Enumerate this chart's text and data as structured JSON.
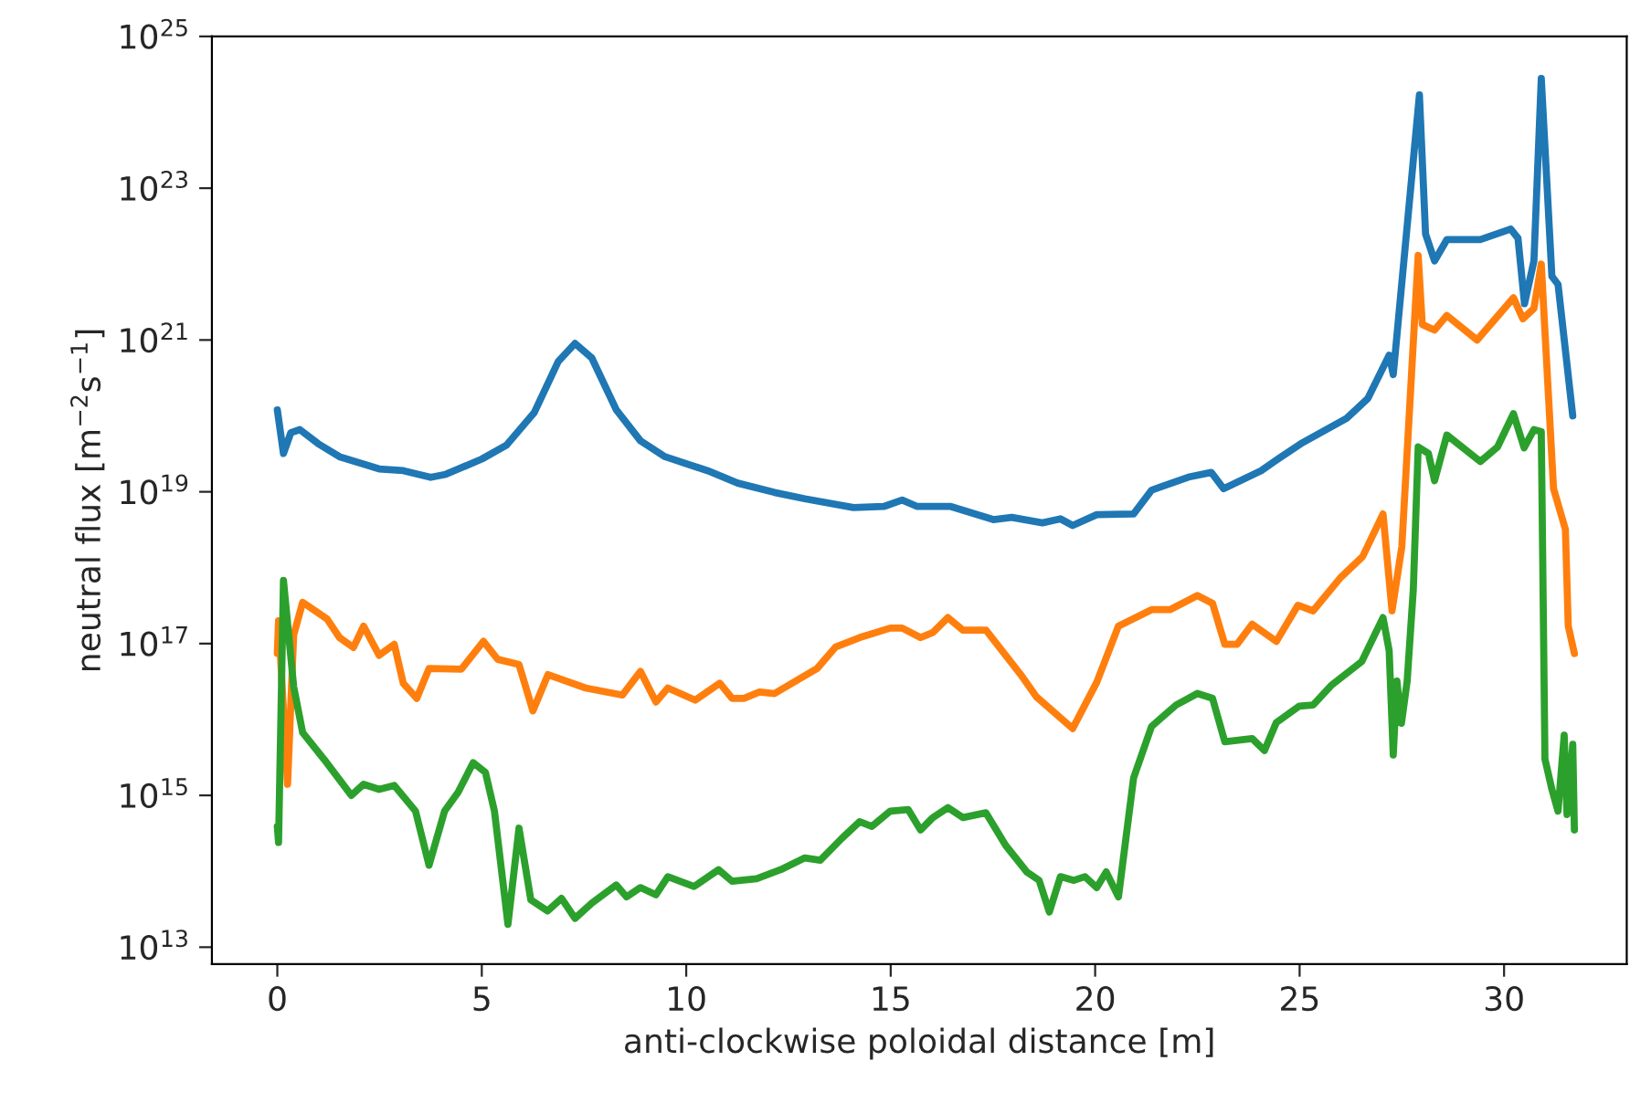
{
  "chart_data": {
    "type": "line",
    "xlabel": "anti-clockwise poloidal distance [m]",
    "ylabel": "neutral flux [m$^{−2}$s$^{−1}$]",
    "log": "y",
    "xlim": [
      -1.6,
      33.0
    ],
    "xticks": [
      0,
      5,
      10,
      15,
      20,
      25,
      30
    ],
    "ylim": [
      6000000000000.0,
      1e+25
    ],
    "yticks": [
      {
        "value": 10000000000000.0,
        "label": "10$^{13}$"
      },
      {
        "value": 1000000000000000.0,
        "label": "10$^{15}$"
      },
      {
        "value": 1e+17,
        "label": "10$^{17}$"
      },
      {
        "value": 1e+19,
        "label": "10$^{19}$"
      },
      {
        "value": 1e+21,
        "label": "10$^{21}$"
      },
      {
        "value": 1e+23,
        "label": "10$^{23}$"
      },
      {
        "value": 1e+25,
        "label": "10$^{25}$"
      }
    ],
    "grid": false,
    "legend": false,
    "line_style": "solid",
    "marker": "none",
    "series": [
      {
        "color": "#1f77b4",
        "x": [
          0,
          0.15,
          0.33,
          0.55,
          1.0,
          1.52,
          2.49,
          3.08,
          3.75,
          4.12,
          5.0,
          5.6,
          6.28,
          6.87,
          7.28,
          7.69,
          8.29,
          8.88,
          9.48,
          10.52,
          11.26,
          12.16,
          12.9,
          14.09,
          14.83,
          15.28,
          15.65,
          16.47,
          17.51,
          17.96,
          18.71,
          19.15,
          19.45,
          20.04,
          20.94,
          21.38,
          22.28,
          22.84,
          23.14,
          24.06,
          24.51,
          25.03,
          26.15,
          26.67,
          27.19,
          27.29,
          27.93,
          28.08,
          28.3,
          28.6,
          29.42,
          30.16,
          30.34,
          30.5,
          30.73,
          30.91,
          31.17,
          31.32,
          31.68
        ],
        "values": [
          1.2e+20,
          3.2e+19,
          6e+19,
          6.6e+19,
          4.3e+19,
          2.9e+19,
          2e+19,
          1.9e+19,
          1.55e+19,
          1.7e+19,
          2.7e+19,
          4.1e+19,
          1.1e+20,
          5.2e+20,
          9e+20,
          5.8e+20,
          1.2e+20,
          4.7e+19,
          2.9e+19,
          1.9e+19,
          1.3e+19,
          9.8e+18,
          8.1e+18,
          6.2e+18,
          6.4e+18,
          7.8e+18,
          6.4e+18,
          6.4e+18,
          4.3e+18,
          4.6e+18,
          3.9e+18,
          4.4e+18,
          3.6e+18,
          5e+18,
          5.1e+18,
          1.05e+19,
          1.56e+19,
          1.8e+19,
          1.1e+19,
          1.9e+19,
          2.8e+19,
          4.3e+19,
          9.3e+19,
          1.7e+20,
          6.3e+20,
          3.5e+20,
          1.7e+24,
          2.5e+22,
          1.1e+22,
          2.1e+22,
          2.1e+22,
          2.9e+22,
          2.2e+22,
          3e+21,
          1.1e+22,
          2.8e+24,
          6.9e+21,
          5.4e+21,
          1e+20
        ]
      },
      {
        "color": "#ff7f0e",
        "x": [
          0,
          0.03,
          0.25,
          0.4,
          0.62,
          1.22,
          1.52,
          1.86,
          2.11,
          2.49,
          2.86,
          3.08,
          3.41,
          3.71,
          4.5,
          5.04,
          5.39,
          5.91,
          6.25,
          6.62,
          7.54,
          8.44,
          8.88,
          9.26,
          9.55,
          10.22,
          10.82,
          11.12,
          11.41,
          11.79,
          12.16,
          13.2,
          13.65,
          14.24,
          14.99,
          15.28,
          15.73,
          16.03,
          16.4,
          16.77,
          17.33,
          18.18,
          18.56,
          19.45,
          20.04,
          20.57,
          21.38,
          21.83,
          22.5,
          22.87,
          23.17,
          23.47,
          23.84,
          24.43,
          24.96,
          25.33,
          26.0,
          26.54,
          27.04,
          27.26,
          27.5,
          27.9,
          28.0,
          28.3,
          28.6,
          29.34,
          30.23,
          30.46,
          30.73,
          30.91,
          31.21,
          31.5,
          31.57,
          31.72
        ],
        "values": [
          7.4e+16,
          2e+17,
          1400000000000000.0,
          1.3e+17,
          3.5e+17,
          2.1e+17,
          1.2e+17,
          8.9e+16,
          1.7e+17,
          7e+16,
          9.8e+16,
          3e+16,
          1.9e+16,
          4.7e+16,
          4.6e+16,
          1.07e+17,
          6.2e+16,
          5.3e+16,
          1.3e+16,
          3.9e+16,
          2.6e+16,
          2.1e+16,
          4.3e+16,
          1.7e+16,
          2.6e+16,
          1.8e+16,
          3e+16,
          1.9e+16,
          1.9e+16,
          2.3e+16,
          2.2e+16,
          4.7e+16,
          9e+16,
          1.2e+17,
          1.6e+17,
          1.6e+17,
          1.2e+17,
          1.4e+17,
          2.2e+17,
          1.5e+17,
          1.5e+17,
          3.9e+16,
          2e+16,
          7600000000000000.0,
          3.1e+16,
          1.7e+17,
          2.8e+17,
          2.8e+17,
          4.3e+17,
          3.4e+17,
          9.8e+16,
          9.8e+16,
          1.8e+17,
          1.07e+17,
          3.2e+17,
          2.7e+17,
          7.4e+17,
          1.4e+18,
          5.1e+18,
          2.7e+17,
          1.9e+18,
          1.3e+22,
          1.6e+21,
          1.35e+21,
          2.1e+21,
          1e+21,
          3.6e+21,
          1.9e+21,
          2.6e+21,
          1e+22,
          1.1e+19,
          3.2e+18,
          1.7e+17,
          7.4e+16
        ]
      },
      {
        "color": "#2ca02c",
        "x": [
          0,
          0.03,
          0.15,
          0.4,
          0.62,
          1.14,
          1.81,
          2.11,
          2.49,
          2.86,
          3.38,
          3.71,
          4.09,
          4.42,
          4.79,
          5.09,
          5.31,
          5.64,
          5.91,
          6.2,
          6.61,
          6.95,
          7.28,
          7.69,
          8.29,
          8.54,
          8.88,
          9.26,
          9.55,
          10.19,
          10.79,
          11.12,
          11.72,
          12.31,
          12.9,
          13.28,
          13.8,
          14.24,
          14.54,
          14.99,
          15.43,
          15.73,
          16.03,
          16.4,
          16.77,
          17.33,
          17.81,
          18.33,
          18.63,
          18.88,
          19.15,
          19.48,
          19.75,
          20.04,
          20.27,
          20.57,
          20.94,
          21.38,
          21.98,
          22.5,
          22.87,
          23.17,
          23.84,
          24.14,
          24.43,
          24.99,
          25.33,
          25.77,
          26.52,
          27.04,
          27.19,
          27.29,
          27.38,
          27.49,
          27.63,
          27.78,
          27.9,
          28.15,
          28.3,
          28.6,
          29.42,
          29.84,
          30.23,
          30.49,
          30.73,
          30.91,
          31.0,
          31.17,
          31.32,
          31.47,
          31.54,
          31.68,
          31.72
        ],
        "values": [
          390000000000000.0,
          240000000000000.0,
          6.8e+17,
          2.7e+16,
          6700000000000000.0,
          3000000000000000.0,
          1000000000000000.0,
          1400000000000000.0,
          1200000000000000.0,
          1350000000000000.0,
          620000000000000.0,
          120000000000000.0,
          620000000000000.0,
          1100000000000000.0,
          2700000000000000.0,
          2000000000000000.0,
          620000000000000.0,
          20000000000000.0,
          370000000000000.0,
          42000000000000.0,
          30000000000000.0,
          44000000000000.0,
          24000000000000.0,
          38000000000000.0,
          66000000000000.0,
          46000000000000.0,
          61000000000000.0,
          49000000000000.0,
          85000000000000.0,
          63000000000000.0,
          105000000000000.0,
          74000000000000.0,
          80000000000000.0,
          105000000000000.0,
          150000000000000.0,
          140000000000000.0,
          270000000000000.0,
          450000000000000.0,
          390000000000000.0,
          620000000000000.0,
          650000000000000.0,
          350000000000000.0,
          510000000000000.0,
          690000000000000.0,
          510000000000000.0,
          590000000000000.0,
          220000000000000.0,
          98000000000000.0,
          76000000000000.0,
          29000000000000.0,
          85000000000000.0,
          76000000000000.0,
          85000000000000.0,
          61000000000000.0,
          98000000000000.0,
          46000000000000.0,
          1700000000000000.0,
          8100000000000000.0,
          1.55e+16,
          2.2e+16,
          1.9e+16,
          5100000000000000.0,
          5600000000000000.0,
          3900000000000000.0,
          9100000000000000.0,
          1.5e+16,
          1.55e+16,
          2.8e+16,
          5.8e+16,
          2.2e+17,
          8.1e+16,
          3400000000000000.0,
          3.2e+16,
          8900000000000000.0,
          3.2e+16,
          5.1e+17,
          3.9e+19,
          3.2e+19,
          1.4e+19,
          5.6e+19,
          2.5e+19,
          3.9e+19,
          1.07e+20,
          3.8e+19,
          6.6e+19,
          6.2e+19,
          3000000000000000.0,
          1200000000000000.0,
          620000000000000.0,
          6200000000000000.0,
          560000000000000.0,
          4700000000000000.0,
          350000000000000.0
        ]
      }
    ]
  }
}
